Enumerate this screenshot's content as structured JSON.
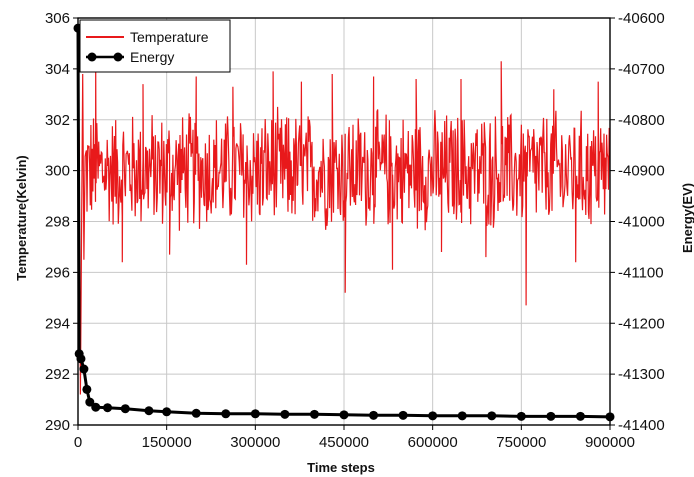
{
  "chart_data": {
    "type": "line",
    "title": "",
    "xlabel": "Time steps",
    "ylabel": "Temperature(Kelvin)",
    "y2label": "Energy(EV)",
    "xlim": [
      0,
      900000
    ],
    "ylim": [
      290,
      306
    ],
    "y2lim": [
      -41400,
      -40600
    ],
    "x_ticks": [
      0,
      150000,
      300000,
      450000,
      600000,
      750000,
      900000
    ],
    "x_tick_labels": [
      "0",
      "150000",
      "300000",
      "450000",
      "600000",
      "750000",
      "900000"
    ],
    "y_ticks": [
      290,
      292,
      294,
      296,
      298,
      300,
      302,
      304,
      306
    ],
    "y_tick_labels": [
      "290",
      "292",
      "294",
      "296",
      "298",
      "300",
      "302",
      "304",
      "306"
    ],
    "y2_ticks": [
      -41400,
      -41300,
      -41200,
      -41100,
      -41000,
      -40900,
      -40800,
      -40700,
      -40600
    ],
    "y2_tick_labels": [
      "-41400",
      "-41300",
      "-41200",
      "-41100",
      "-41000",
      "-40900",
      "-40800",
      "-40700",
      "-40600"
    ],
    "grid": true,
    "legend_position": "top-left",
    "series": [
      {
        "name": "Temperature",
        "axis": "left",
        "color": "#e8191b",
        "marker": "none",
        "mean": 300,
        "amplitude": 2.6,
        "x_spikes": [
          30000,
          75000,
          110000,
          155000,
          200000,
          262000,
          285000,
          330000,
          378000,
          430000,
          452000,
          500000,
          532000,
          572000,
          615000,
          648000,
          690000,
          716000,
          758000,
          805000,
          842000,
          880000
        ],
        "y_spikes": [
          304.2,
          296.4,
          303.4,
          296.7,
          303.7,
          303.3,
          296.3,
          303.9,
          303.5,
          303.8,
          295.2,
          303.7,
          296.1,
          303.6,
          296.8,
          303.6,
          296.6,
          304.3,
          294.7,
          303.2,
          296.4,
          303.5
        ],
        "x": [
          0,
          2000,
          4000,
          8000,
          10000
        ],
        "y": [
          300,
          301.5,
          291.2,
          303.8,
          296.5
        ]
      },
      {
        "name": "Energy",
        "axis": "right",
        "color": "#000000",
        "marker": "circle",
        "x": [
          0,
          2000,
          5000,
          10000,
          15000,
          20000,
          30000,
          50000,
          80000,
          120000,
          150000,
          200000,
          250000,
          300000,
          350000,
          400000,
          450000,
          500000,
          550000,
          600000,
          650000,
          700000,
          750000,
          800000,
          850000,
          900000
        ],
        "y": [
          -40620,
          -41260,
          -41270,
          -41290,
          -41330,
          -41355,
          -41365,
          -41366,
          -41368,
          -41372,
          -41374,
          -41377,
          -41378,
          -41378,
          -41379,
          -41379,
          -41380,
          -41381,
          -41381,
          -41382,
          -41382,
          -41382,
          -41383,
          -41383,
          -41383,
          -41384
        ]
      }
    ]
  }
}
